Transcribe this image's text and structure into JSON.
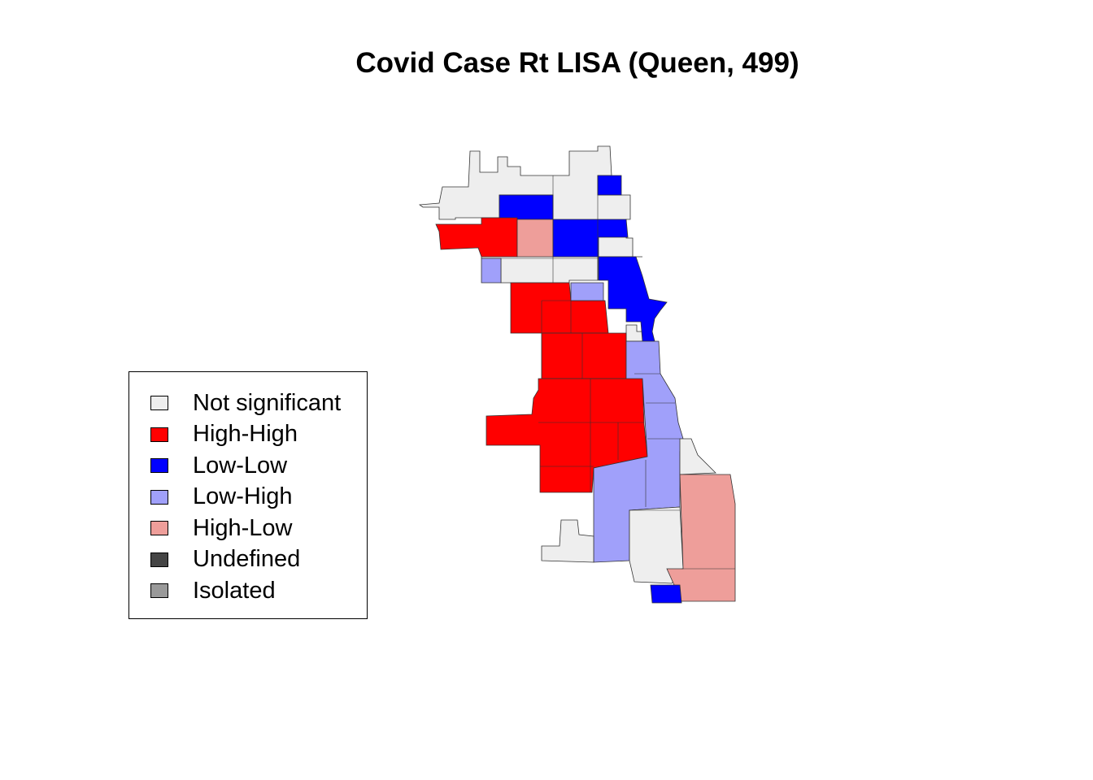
{
  "title": "Covid Case Rt LISA (Queen, 499)",
  "colors": {
    "not_significant": "#eeeeee",
    "high_high": "#ff0000",
    "low_low": "#0000ff",
    "low_high": "#a0a0fa",
    "high_low": "#ee9e9a",
    "undefined": "#444444",
    "isolated": "#999999",
    "border": "#333333"
  },
  "legend": {
    "items": [
      {
        "label": "Not significant",
        "key": "not_significant"
      },
      {
        "label": "High-High",
        "key": "high_high"
      },
      {
        "label": "Low-Low",
        "key": "low_low"
      },
      {
        "label": "Low-High",
        "key": "low_high"
      },
      {
        "label": "High-Low",
        "key": "high_low"
      },
      {
        "label": "Undefined",
        "key": "undefined"
      },
      {
        "label": "Isolated",
        "key": "isolated"
      }
    ]
  },
  "map": {
    "regions": [
      {
        "name": "far-north-west",
        "cls": "not_significant"
      },
      {
        "name": "north-lakefront-strip",
        "cls": "low_low"
      },
      {
        "name": "north-central-block",
        "cls": "low_low"
      },
      {
        "name": "northwest-red-strip",
        "cls": "high_high"
      },
      {
        "name": "northwest-pink",
        "cls": "high_low"
      },
      {
        "name": "north-blue-east",
        "cls": "low_low"
      },
      {
        "name": "downtown-blue",
        "cls": "low_low"
      },
      {
        "name": "west-red-cluster",
        "cls": "high_high"
      },
      {
        "name": "southwest-red-cluster",
        "cls": "high_high"
      },
      {
        "name": "south-lavender",
        "cls": "low_high"
      },
      {
        "name": "far-south-grey",
        "cls": "not_significant"
      },
      {
        "name": "southeast-pink",
        "cls": "high_low"
      },
      {
        "name": "southernmost-blue",
        "cls": "low_low"
      }
    ]
  }
}
